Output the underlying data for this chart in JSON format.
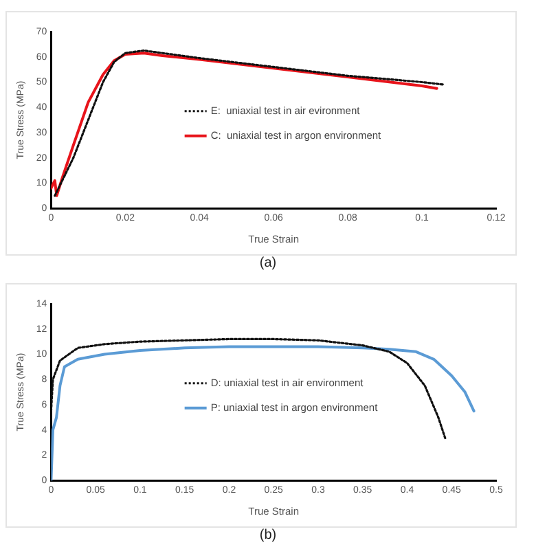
{
  "chart_data": [
    {
      "type": "line",
      "xlabel": "True Strain",
      "ylabel": "True Stress (MPa)",
      "xlim": [
        0,
        0.12
      ],
      "xticks": [
        0,
        0.02,
        0.04,
        0.06,
        0.08,
        0.1,
        0.12
      ],
      "ylim": [
        0,
        70
      ],
      "yticks": [
        0,
        10,
        20,
        30,
        40,
        50,
        60,
        70
      ],
      "grid": false,
      "legend": "center",
      "marker": "none",
      "annotations": [
        "(a)"
      ],
      "series": [
        {
          "name": "E:  uniaxial test in air evironment",
          "color": "#111111",
          "line_style": "dotted",
          "x": [
            0.001,
            0.006,
            0.01,
            0.014,
            0.017,
            0.02,
            0.025,
            0.03,
            0.04,
            0.06,
            0.08,
            0.1,
            0.106
          ],
          "values": [
            5,
            20,
            35,
            50,
            58,
            61.5,
            62.5,
            61.5,
            59.5,
            56,
            52.5,
            50,
            49
          ]
        },
        {
          "name": "C:  uniaxial test in argon environment",
          "color": "#e8141b",
          "line_style": "solid",
          "x": [
            0,
            0.001,
            0.0015,
            0.003,
            0.006,
            0.01,
            0.014,
            0.017,
            0.02,
            0.025,
            0.03,
            0.04,
            0.06,
            0.08,
            0.1,
            0.104
          ],
          "values": [
            8,
            11,
            5,
            12,
            25,
            42,
            53,
            58.5,
            61,
            61.5,
            60.5,
            59,
            55.5,
            52,
            48.5,
            47.5
          ]
        }
      ]
    },
    {
      "type": "line",
      "xlabel": "True Strain",
      "ylabel": "True Stress (MPa)",
      "xlim": [
        0,
        0.5
      ],
      "xticks": [
        0,
        0.05,
        0.1,
        0.15,
        0.2,
        0.25,
        0.3,
        0.35,
        0.4,
        0.45,
        0.5
      ],
      "ylim": [
        0,
        14
      ],
      "yticks": [
        0,
        2,
        4,
        6,
        8,
        10,
        12,
        14
      ],
      "grid": false,
      "legend": "center",
      "marker": "none",
      "annotations": [
        "(b)"
      ],
      "series": [
        {
          "name": "D: uniaxial test in air environment",
          "color": "#111111",
          "line_style": "dotted",
          "x": [
            0,
            0.002,
            0.01,
            0.03,
            0.06,
            0.1,
            0.15,
            0.2,
            0.25,
            0.3,
            0.35,
            0.38,
            0.4,
            0.42,
            0.435,
            0.443
          ],
          "values": [
            5.5,
            8,
            9.5,
            10.5,
            10.8,
            11,
            11.1,
            11.2,
            11.2,
            11.1,
            10.7,
            10.2,
            9.3,
            7.5,
            5,
            3.3
          ]
        },
        {
          "name": "P: uniaxial test in argon environment",
          "color": "#5b9bd5",
          "line_style": "solid",
          "x": [
            0,
            0.002,
            0.006,
            0.01,
            0.015,
            0.03,
            0.06,
            0.1,
            0.15,
            0.2,
            0.25,
            0.3,
            0.35,
            0.38,
            0.41,
            0.43,
            0.45,
            0.465,
            0.475
          ],
          "values": [
            0,
            4,
            5,
            7.5,
            9,
            9.6,
            10,
            10.3,
            10.5,
            10.6,
            10.6,
            10.6,
            10.5,
            10.4,
            10.2,
            9.6,
            8.3,
            7,
            5.5
          ]
        }
      ]
    }
  ]
}
